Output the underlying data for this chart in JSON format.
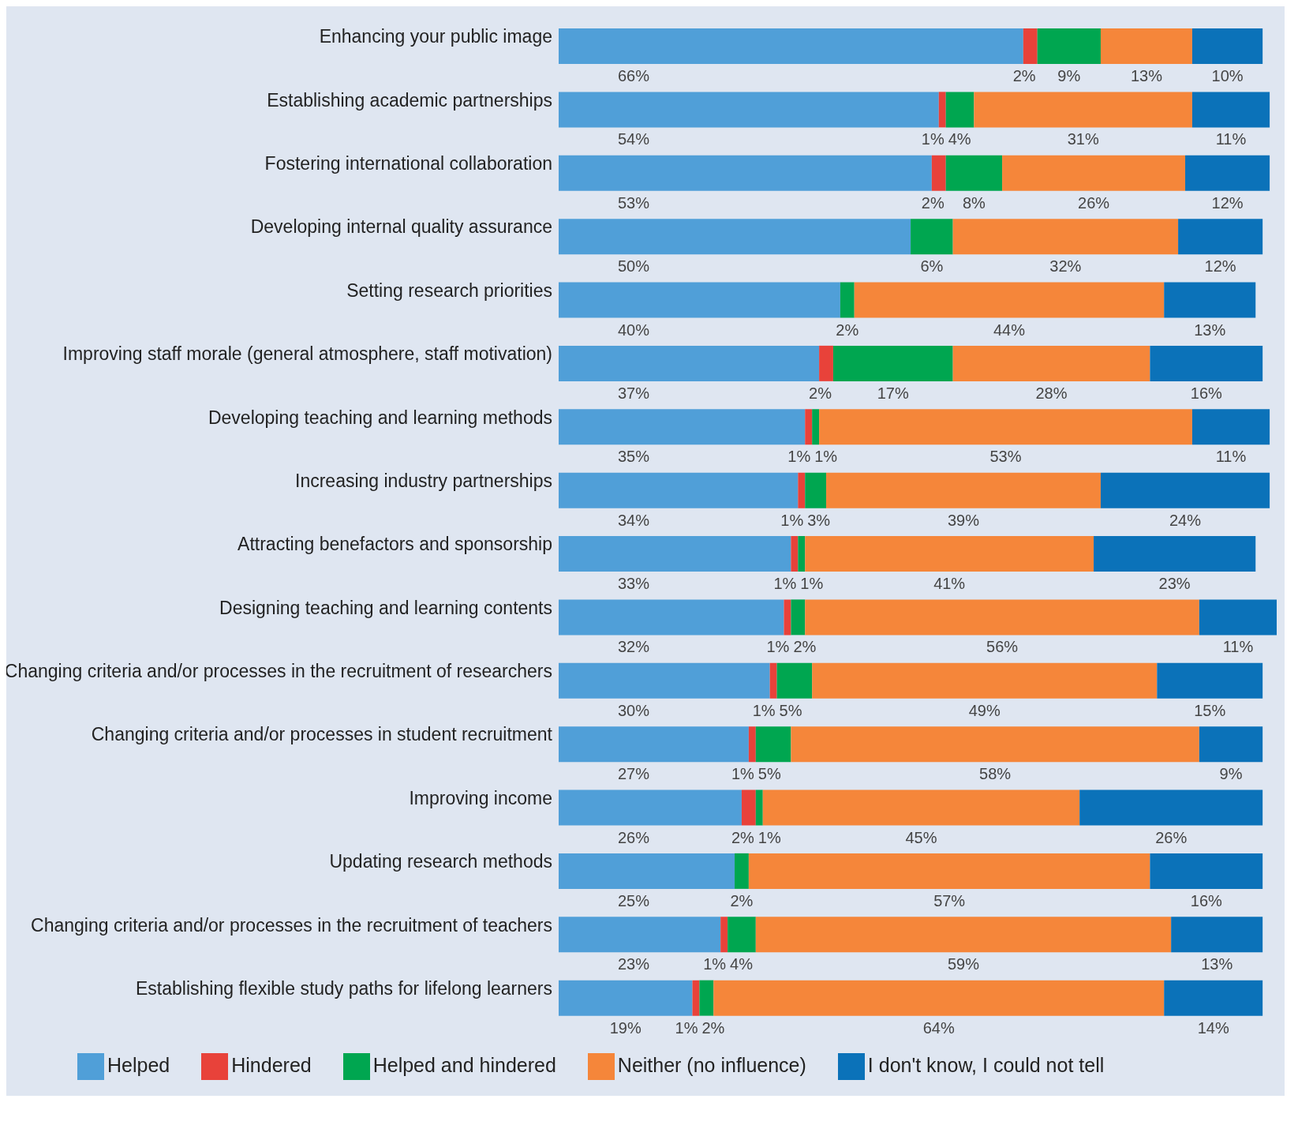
{
  "chart_data": {
    "type": "bar",
    "orientation": "horizontal",
    "stacked": true,
    "tick_labels": "y",
    "legend": "bottom",
    "grid": false,
    "xlim": [
      0,
      102
    ],
    "categories": [
      "Enhancing your public image",
      "Establishing academic partnerships",
      "Fostering international collaboration",
      "Developing internal quality assurance",
      "Setting research priorities",
      "Improving staff morale (general atmosphere, staff motivation)",
      "Developing teaching and learning methods",
      "Increasing industry partnerships",
      "Attracting benefactors and sponsorship",
      "Designing teaching and learning contents",
      "Changing criteria and/or processes in the recruitment of researchers",
      "Changing criteria and/or processes in student recruitment",
      "Improving income",
      "Updating research methods",
      "Changing criteria and/or processes in the recruitment of teachers",
      "Establishing flexible study paths for lifelong learners"
    ],
    "series": [
      {
        "name": "Helped",
        "color": "#509fd8",
        "values": [
          66,
          54,
          53,
          50,
          40,
          37,
          35,
          34,
          33,
          32,
          30,
          27,
          26,
          25,
          23,
          19
        ],
        "value_labels": [
          "66%",
          "54%",
          "53%",
          "50%",
          "40%",
          "37%",
          "35%",
          "34%",
          "33%",
          "32%",
          "30%",
          "27%",
          "26%",
          "25%",
          "23%",
          "19%"
        ]
      },
      {
        "name": "Hindered",
        "color": "#e8423a",
        "values": [
          2,
          1,
          2,
          null,
          null,
          2,
          1,
          1,
          1,
          1,
          1,
          1,
          2,
          null,
          1,
          1
        ],
        "value_labels": [
          "2%",
          "1%",
          "2%",
          null,
          null,
          "2%",
          "1%",
          "1%",
          "1%",
          "1%",
          "1%",
          "1%",
          "2%",
          null,
          "1%",
          "1%"
        ]
      },
      {
        "name": "Helped and hindered",
        "color": "#00a650",
        "values": [
          9,
          4,
          8,
          6,
          2,
          17,
          1,
          3,
          1,
          2,
          5,
          5,
          1,
          2,
          4,
          2
        ],
        "value_labels": [
          "9%",
          "4%",
          "8%",
          "6%",
          "2%",
          "17%",
          "1%",
          "3%",
          "1%",
          "2%",
          "5%",
          "5%",
          "1%",
          "2%",
          "4%",
          "2%"
        ]
      },
      {
        "name": "Neither (no influence)",
        "color": "#f5863a",
        "values": [
          13,
          31,
          26,
          32,
          44,
          28,
          53,
          39,
          41,
          56,
          49,
          58,
          45,
          57,
          59,
          64
        ],
        "value_labels": [
          "13%",
          "31%",
          "26%",
          "32%",
          "44%",
          "28%",
          "53%",
          "39%",
          "41%",
          "56%",
          "49%",
          "58%",
          "45%",
          "57%",
          "59%",
          "64%"
        ]
      },
      {
        "name": "I don't know, I could not tell",
        "color": "#0b72b9",
        "values": [
          10,
          11,
          12,
          12,
          13,
          16,
          11,
          24,
          23,
          11,
          15,
          9,
          26,
          16,
          13,
          14
        ],
        "value_labels": [
          "10%",
          "11%",
          "12%",
          "12%",
          "13%",
          "16%",
          "11%",
          "24%",
          "23%",
          "11%",
          "15%",
          "9%",
          "26%",
          "16%",
          "13%",
          "14%"
        ]
      }
    ]
  }
}
